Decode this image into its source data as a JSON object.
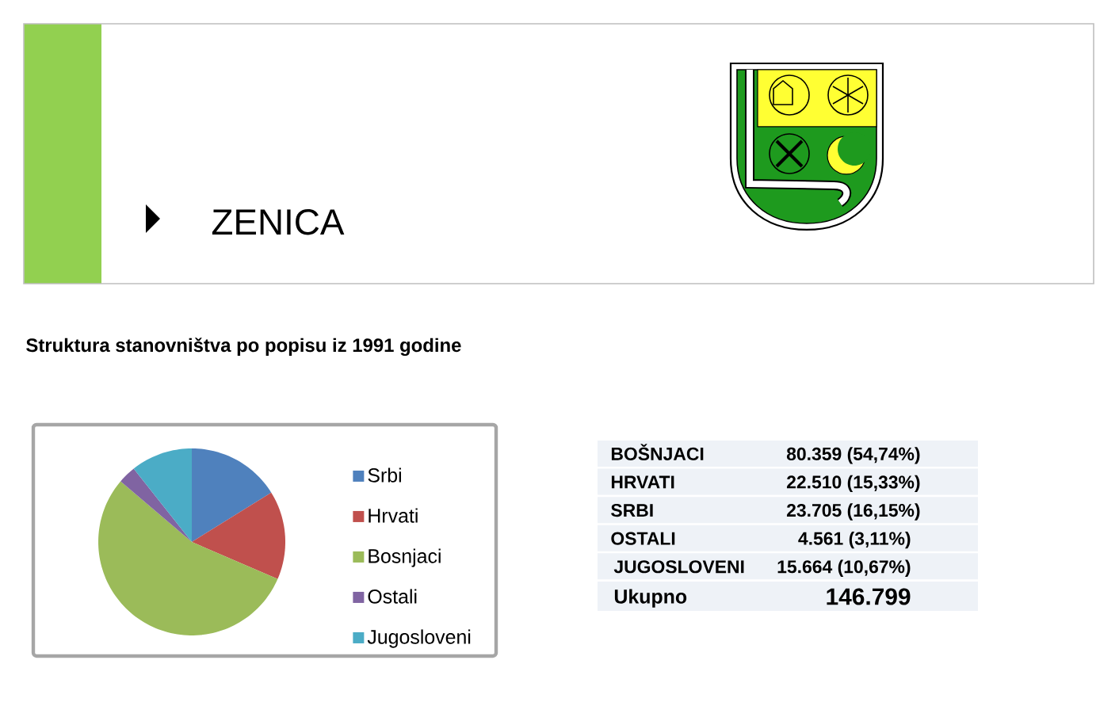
{
  "chart_data": {
    "type": "pie",
    "title": "ZENICA",
    "subtitle": "Struktura stanovništva po popisu iz 1991 godine",
    "categories": [
      "Srbi",
      "Hrvati",
      "Bosnjaci",
      "Ostali",
      "Jugosloveni"
    ],
    "values": [
      16.15,
      15.33,
      54.74,
      3.11,
      10.67
    ],
    "colors": [
      "#4f81bd",
      "#c0504d",
      "#9bbb59",
      "#8064a2",
      "#4bacc6"
    ],
    "legend": "right",
    "annotations": [
      "BOŠNJACI",
      "80.359  (54,74%)",
      "HRVATI",
      "22.510  (15,33%)",
      "SRBI",
      "23.705  (16,15%)",
      "OSTALI",
      "4.561  (3,11%)",
      "JUGOSLOVENI",
      "15.664  (10,67%)",
      "Ukupno",
      "146.799"
    ]
  }
}
